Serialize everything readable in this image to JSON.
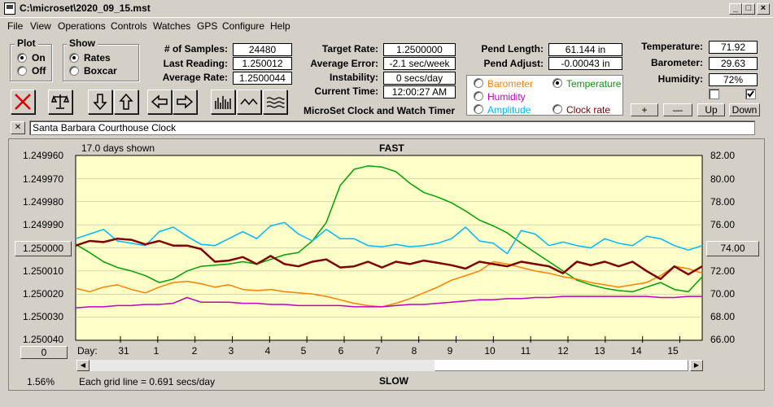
{
  "window": {
    "title": "C:\\microset\\2020_09_15.mst"
  },
  "menu": [
    "File",
    "View",
    "Operations",
    "Controls",
    "Watches",
    "GPS",
    "Configure",
    "Help"
  ],
  "plot_group": {
    "label": "Plot",
    "options": [
      "On",
      "Off"
    ],
    "selected": "On"
  },
  "show_group": {
    "label": "Show",
    "options": [
      "Rates",
      "Boxcar"
    ],
    "selected": "Rates"
  },
  "stats": {
    "samples_label": "# of Samples:",
    "samples": "24480",
    "last_reading_label": "Last Reading:",
    "last_reading": "1.250012",
    "average_rate_label": "Average Rate:",
    "average_rate": "1.2500044",
    "target_rate_label": "Target Rate:",
    "target_rate": "1.2500000",
    "average_error_label": "Average Error:",
    "average_error": "-2.1 sec/week",
    "instability_label": "Instability:",
    "instability": "0 secs/day",
    "current_time_label": "Current Time:",
    "current_time": "12:00:27 AM",
    "pend_length_label": "Pend Length:",
    "pend_length": "61.144 in",
    "pend_adjust_label": "Pend Adjust:",
    "pend_adjust": "-0.00043 in",
    "temperature_label": "Temperature:",
    "temperature": "71.92",
    "barometer_label": "Barometer:",
    "barometer": "29.63",
    "humidity_label": "Humidity:",
    "humidity": "72%"
  },
  "app_title": "MicroSet Clock and Watch Timer",
  "channels": {
    "barometer": {
      "label": "Barometer",
      "color": "#ff8000"
    },
    "temperature": {
      "label": "Temperature",
      "color": "#00a000",
      "selected": true
    },
    "humidity": {
      "label": "Humidity",
      "color": "#c000c0"
    },
    "amplitude": {
      "label": "Amplitude",
      "color": "#00b8ff"
    },
    "clock_rate": {
      "label": "Clock rate",
      "color": "#800000"
    }
  },
  "adjust_buttons": {
    "plus": "+",
    "minus": "—",
    "up": "Up",
    "down": "Down"
  },
  "clock_name": "Santa Barbara Courthouse Clock",
  "close_x": "✕",
  "toolbar_icons": [
    "close-icon",
    "balance-icon",
    "arrow-down-icon",
    "arrow-up-icon",
    "arrow-left-icon",
    "arrow-right-icon",
    "bars-icon",
    "wave-icon",
    "ripple-icon"
  ],
  "chart": {
    "days_shown": "17.0 days shown",
    "top_label": "FAST",
    "bottom_label": "SLOW",
    "grid_note": "Each grid line = 0.691 secs/day",
    "day_label": "Day:",
    "zoom_pct": "1.56%",
    "center_left_button": "1.250000",
    "center_right_button": "74.00",
    "zero_button": "0"
  },
  "chart_data": {
    "type": "line",
    "left_axis_ticks": [
      "1.249960",
      "1.249970",
      "1.249980",
      "1.249990",
      "1.250000",
      "1.250010",
      "1.250020",
      "1.250030",
      "1.250040"
    ],
    "right_axis_ticks": [
      "82.00",
      "80.00",
      "78.00",
      "76.00",
      "74.00",
      "72.00",
      "70.00",
      "68.00",
      "66.00"
    ],
    "ylim_left": [
      1.24996,
      1.25004
    ],
    "ylim_right": [
      66,
      82
    ],
    "day_ticks": [
      "31",
      "1",
      "2",
      "3",
      "4",
      "5",
      "6",
      "7",
      "8",
      "9",
      "10",
      "11",
      "12",
      "13",
      "14",
      "15"
    ],
    "grid": true,
    "series": [
      {
        "name": "Temperature",
        "color": "#00a000",
        "values": [
          74.3,
          73.6,
          72.8,
          72.3,
          72.0,
          71.6,
          71.0,
          71.3,
          72.0,
          72.4,
          72.5,
          72.6,
          72.8,
          72.6,
          73.0,
          73.4,
          73.6,
          74.6,
          76.2,
          79.4,
          80.8,
          81.1,
          81.0,
          80.6,
          79.6,
          78.8,
          78.4,
          77.9,
          77.2,
          76.4,
          75.9,
          75.3,
          74.4,
          73.6,
          72.8,
          72.0,
          71.2,
          70.8,
          70.5,
          70.3,
          70.2,
          70.6,
          71.0,
          70.4,
          70.2,
          71.5
        ]
      },
      {
        "name": "Amplitude",
        "color": "#00b8ff",
        "values": [
          74.8,
          75.2,
          75.6,
          74.6,
          74.4,
          74.2,
          75.4,
          75.8,
          75.0,
          74.3,
          74.2,
          74.8,
          75.4,
          74.8,
          75.9,
          76.2,
          75.2,
          74.6,
          75.6,
          74.8,
          74.8,
          74.2,
          74.1,
          74.3,
          74.1,
          74.2,
          74.4,
          74.8,
          75.8,
          74.6,
          74.4,
          73.5,
          75.5,
          75.2,
          74.2,
          74.5,
          74.2,
          74.0,
          74.8,
          74.4,
          74.2,
          75.0,
          74.8,
          74.2,
          73.8,
          74.2
        ]
      },
      {
        "name": "Barometer",
        "color": "#ff8000",
        "values": [
          70.5,
          70.2,
          70.6,
          70.8,
          70.4,
          70.1,
          70.6,
          71.0,
          71.1,
          70.9,
          70.6,
          70.8,
          70.4,
          70.3,
          70.4,
          70.2,
          70.1,
          70.0,
          69.8,
          69.5,
          69.2,
          69.0,
          68.9,
          69.2,
          69.6,
          70.1,
          70.6,
          71.2,
          71.6,
          72.0,
          72.8,
          72.6,
          72.3,
          72.0,
          71.8,
          71.5,
          71.3,
          71.0,
          70.8,
          70.6,
          70.8,
          71.0,
          71.6,
          72.4,
          72.2,
          71.8
        ]
      },
      {
        "name": "Humidity",
        "color": "#c000c0",
        "values": [
          68.8,
          68.9,
          68.9,
          69.0,
          69.0,
          69.1,
          69.1,
          69.2,
          69.7,
          69.3,
          69.3,
          69.3,
          69.2,
          69.2,
          69.1,
          69.1,
          69.0,
          69.0,
          69.0,
          69.0,
          68.9,
          68.9,
          68.9,
          69.0,
          69.1,
          69.1,
          69.2,
          69.3,
          69.4,
          69.5,
          69.5,
          69.6,
          69.6,
          69.7,
          69.7,
          69.8,
          69.8,
          69.8,
          69.8,
          69.8,
          69.8,
          69.8,
          69.7,
          69.7,
          69.8,
          69.8
        ]
      },
      {
        "name": "Clock rate",
        "color": "#800000",
        "values": [
          74.2,
          74.6,
          74.5,
          74.8,
          74.7,
          74.3,
          74.6,
          74.2,
          74.2,
          73.9,
          72.8,
          72.9,
          73.2,
          72.6,
          73.3,
          72.6,
          72.4,
          72.8,
          73.0,
          72.3,
          72.4,
          72.8,
          72.3,
          72.8,
          72.6,
          72.9,
          72.7,
          72.5,
          72.2,
          72.8,
          72.6,
          72.4,
          72.8,
          72.6,
          72.4,
          71.8,
          72.8,
          72.5,
          72.8,
          72.4,
          72.8,
          72.0,
          71.3,
          72.4,
          71.7,
          72.4
        ]
      }
    ]
  }
}
